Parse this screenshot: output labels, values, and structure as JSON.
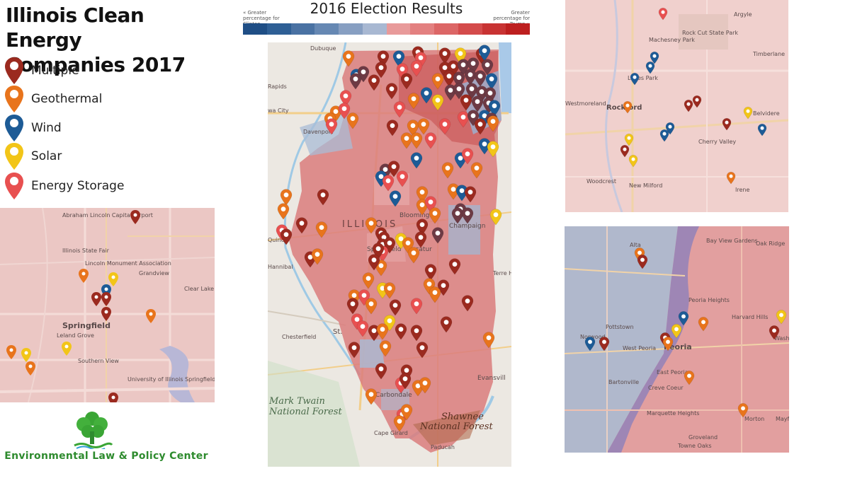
{
  "title": {
    "line1": "Illinois Clean Energy",
    "line2": "Companies 2017"
  },
  "legend": [
    {
      "label": "Multiple",
      "color": "#9b2a1f",
      "icon": "marker-multiple-icon"
    },
    {
      "label": "Geothermal",
      "color": "#e8741c",
      "icon": "marker-geothermal-icon"
    },
    {
      "label": "Wind",
      "color": "#1d5b96",
      "icon": "marker-wind-icon"
    },
    {
      "label": "Solar",
      "color": "#f2c518",
      "icon": "marker-solar-icon"
    },
    {
      "label": "Energy Storage",
      "color": "#e85050",
      "icon": "marker-storage-icon"
    }
  ],
  "election": {
    "title": "2016 Election Results",
    "left_note": "« Greater percentage for Clinton",
    "right_note": "Greater percentage for Trump »",
    "scale_colors": [
      "#1f4e85",
      "#2e5f95",
      "#4a72a3",
      "#6688b3",
      "#879fc2",
      "#a8b8d2",
      "#e89a9a",
      "#e38080",
      "#dc6666",
      "#d44b4b",
      "#c83333",
      "#bd1f1f"
    ]
  },
  "springfield_map": {
    "labels": [
      "Abraham Lincoln Capital Airport",
      "Illinois State Fair",
      "Lincoln Monument Association",
      "Grandview",
      "Clear Lake",
      "Springfield",
      "Leland Grove",
      "Southern View",
      "University of Illinois Springfield"
    ]
  },
  "main_map": {
    "labels": [
      "Dubuque",
      "Rapids",
      "wa City",
      "Davenport",
      "Quincy",
      "Hannibal",
      "Chesterfield",
      "St.",
      "ILLINOIS",
      "Springfield",
      "Decatur",
      "Bloomington",
      "Champaign",
      "Terre H",
      "Evansvill",
      "Carbondale",
      "Mark Twain",
      "National Forest",
      "Shawnee",
      "National Forest",
      "Cape Girard",
      "Paducah"
    ]
  },
  "rockford_map": {
    "labels": [
      "Machesney Park",
      "Rock Cut State Park",
      "Argyle",
      "Timberlane",
      "Loves Park",
      "Westmoreland",
      "Rockford",
      "Belvidere",
      "Cherry Valley",
      "Woodcrest",
      "New Milford",
      "Irene"
    ]
  },
  "peoria_map": {
    "labels": [
      "Bay View Gardens",
      "Oak Ridge",
      "Alta",
      "Peoria Heights",
      "Harvard Hills",
      "Pottstown",
      "Norwood",
      "West Peoria",
      "Peoria",
      "East Peoria",
      "Washin",
      "Bartonville",
      "Creve Coeur",
      "Marquette Heights",
      "Morton",
      "Groveland",
      "Towne Oaks",
      "Mayf"
    ]
  },
  "logo": {
    "text": "Environmental Law & Policy Center"
  }
}
